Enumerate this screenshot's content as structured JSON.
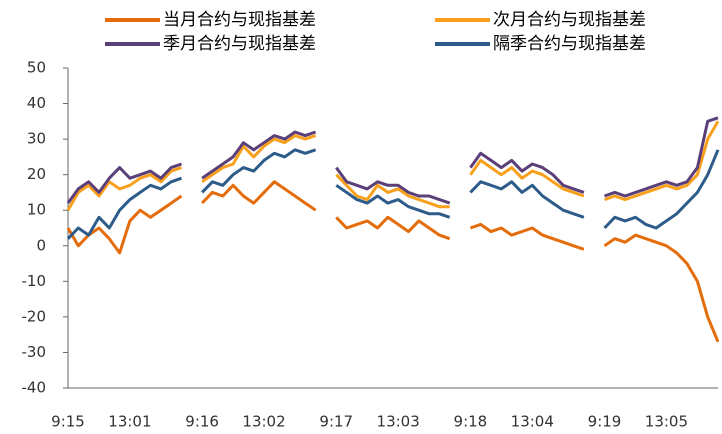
{
  "chart_data": {
    "type": "line",
    "categories": [
      "9:15",
      null,
      null,
      null,
      null,
      null,
      "13:01",
      null,
      null,
      null,
      null,
      null,
      null,
      "9:16",
      null,
      null,
      null,
      null,
      null,
      "13:02",
      null,
      null,
      null,
      null,
      null,
      null,
      "9:17",
      null,
      null,
      null,
      null,
      null,
      "13:03",
      null,
      null,
      null,
      null,
      null,
      null,
      "9:18",
      null,
      null,
      null,
      null,
      null,
      "13:04",
      null,
      null,
      null,
      null,
      null,
      null,
      "9:19",
      null,
      null,
      null,
      null,
      null,
      "13:05",
      null,
      null,
      null,
      null,
      null
    ],
    "series": [
      {
        "name": "当月合约与现指基差",
        "color": "#e46c0a",
        "values": [
          5,
          0,
          3,
          5,
          2,
          -2,
          7,
          10,
          8,
          10,
          12,
          14,
          null,
          12,
          15,
          14,
          17,
          14,
          12,
          15,
          18,
          16,
          14,
          12,
          10,
          null,
          8,
          5,
          6,
          7,
          5,
          8,
          6,
          4,
          7,
          5,
          3,
          2,
          null,
          5,
          6,
          4,
          5,
          3,
          4,
          5,
          3,
          2,
          1,
          0,
          -1,
          null,
          0,
          2,
          1,
          3,
          2,
          1,
          0,
          -2,
          -5,
          -10,
          -20,
          -27
        ]
      },
      {
        "name": "次月合约与现指基差",
        "color": "#f8a01c",
        "values": [
          10,
          15,
          17,
          14,
          18,
          16,
          17,
          19,
          20,
          18,
          21,
          22,
          null,
          18,
          20,
          22,
          23,
          28,
          25,
          28,
          30,
          29,
          31,
          30,
          31,
          null,
          20,
          17,
          14,
          13,
          17,
          15,
          16,
          14,
          13,
          12,
          11,
          11,
          null,
          20,
          24,
          22,
          20,
          22,
          19,
          21,
          20,
          18,
          16,
          15,
          14,
          null,
          13,
          14,
          13,
          14,
          15,
          16,
          17,
          16,
          17,
          20,
          30,
          35
        ]
      },
      {
        "name": "季月合约与现指基差",
        "color": "#5b3f78",
        "values": [
          12,
          16,
          18,
          15,
          19,
          22,
          19,
          20,
          21,
          19,
          22,
          23,
          null,
          19,
          21,
          23,
          25,
          29,
          27,
          29,
          31,
          30,
          32,
          31,
          32,
          null,
          22,
          18,
          17,
          16,
          18,
          17,
          17,
          15,
          14,
          14,
          13,
          12,
          null,
          22,
          26,
          24,
          22,
          24,
          21,
          23,
          22,
          20,
          17,
          16,
          15,
          null,
          14,
          15,
          14,
          15,
          16,
          17,
          18,
          17,
          18,
          22,
          35,
          36
        ]
      },
      {
        "name": "隔季合约与现指基差",
        "color": "#2e5c8a",
        "values": [
          2,
          5,
          3,
          8,
          5,
          10,
          13,
          15,
          17,
          16,
          18,
          19,
          null,
          15,
          18,
          17,
          20,
          22,
          21,
          24,
          26,
          25,
          27,
          26,
          27,
          null,
          17,
          15,
          13,
          12,
          14,
          12,
          13,
          11,
          10,
          9,
          9,
          8,
          null,
          15,
          18,
          17,
          16,
          18,
          15,
          17,
          14,
          12,
          10,
          9,
          8,
          null,
          5,
          8,
          7,
          8,
          6,
          5,
          7,
          9,
          12,
          15,
          20,
          27
        ]
      }
    ],
    "ylim": [
      -40,
      50
    ],
    "yticks": [
      -40,
      -30,
      -20,
      -10,
      0,
      10,
      20,
      30,
      40,
      50
    ]
  }
}
